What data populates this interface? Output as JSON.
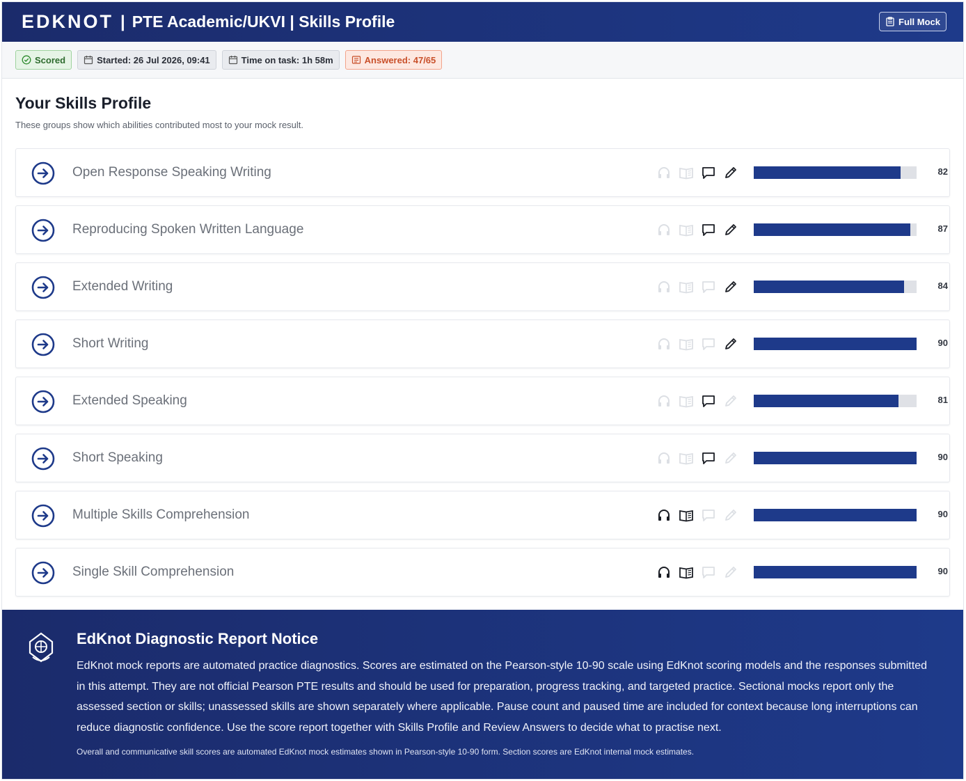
{
  "header": {
    "logo_text": "EDKNOT",
    "title": "PTE Academic/UKVI | Skills Profile",
    "separator": "|",
    "full_mock_label": "Full Mock"
  },
  "meta": {
    "scored": "Scored",
    "started": "Started: 26 Jul 2026, 09:41",
    "time_on_task": "Time on task: 1h 58m",
    "answered": "Answered: 47/65"
  },
  "main": {
    "title": "Your Skills Profile",
    "subtitle": "These groups show which abilities contributed most to your mock result."
  },
  "skills": [
    {
      "name": "Open Response Speaking Writing",
      "score": "82",
      "listening": false,
      "reading": false,
      "speaking": true,
      "writing": true
    },
    {
      "name": "Reproducing Spoken Written Language",
      "score": "87",
      "listening": false,
      "reading": false,
      "speaking": true,
      "writing": true
    },
    {
      "name": "Extended Writing",
      "score": "84",
      "listening": false,
      "reading": false,
      "speaking": false,
      "writing": true
    },
    {
      "name": "Short Writing",
      "score": "90",
      "listening": false,
      "reading": false,
      "speaking": false,
      "writing": true
    },
    {
      "name": "Extended Speaking",
      "score": "81",
      "listening": false,
      "reading": false,
      "speaking": true,
      "writing": false
    },
    {
      "name": "Short Speaking",
      "score": "90",
      "listening": false,
      "reading": false,
      "speaking": true,
      "writing": false
    },
    {
      "name": "Multiple Skills Comprehension",
      "score": "90",
      "listening": true,
      "reading": true,
      "speaking": false,
      "writing": false
    },
    {
      "name": "Single Skill Comprehension",
      "score": "90",
      "listening": true,
      "reading": true,
      "speaking": false,
      "writing": false
    }
  ],
  "score_scale": {
    "min": 10,
    "max": 90
  },
  "colors": {
    "brand": "#1e3a8a",
    "scored": "#2e6b2e",
    "answered": "#c9502a"
  },
  "notice": {
    "title": "EdKnot Diagnostic Report Notice",
    "body": "EdKnot mock reports are automated practice diagnostics. Scores are estimated on the Pearson-style 10-90 scale using EdKnot scoring models and the responses submitted in this attempt. They are not official Pearson PTE results and should be used for preparation, progress tracking, and targeted practice. Sectional mocks report only the assessed section or skills; unassessed skills are shown separately where applicable. Pause count and paused time are included for context because long interruptions can reduce diagnostic confidence. Use the score report together with Skills Profile and Review Answers to decide what to practise next.",
    "footnote": "Overall and communicative skill scores are automated EdKnot mock estimates shown in Pearson-style 10-90 form. Section scores are EdKnot internal mock estimates."
  }
}
